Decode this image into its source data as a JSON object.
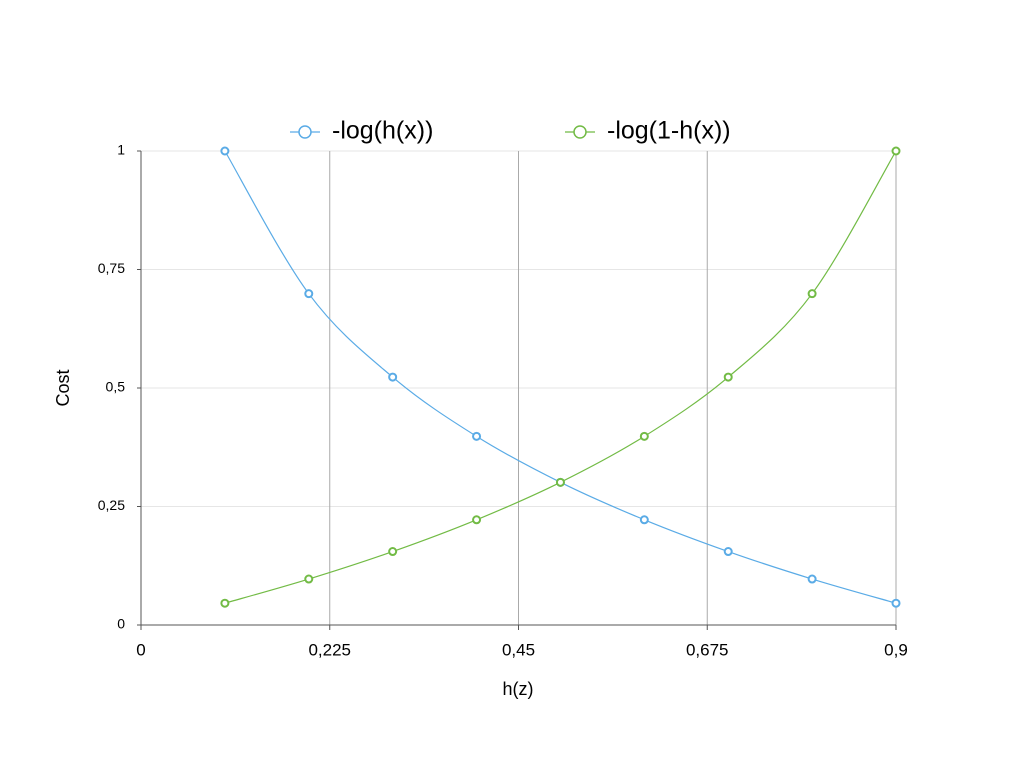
{
  "chart_data": {
    "type": "line",
    "x_label": "h(z)",
    "y_label": "Cost",
    "x": [
      0.1,
      0.2,
      0.3,
      0.4,
      0.5,
      0.6,
      0.7,
      0.8,
      0.9
    ],
    "series": [
      {
        "name": "-log(h(x))",
        "color": "#5aabe6",
        "values": [
          1,
          0.699,
          0.523,
          0.398,
          0.301,
          0.222,
          0.155,
          0.097,
          0.046
        ]
      },
      {
        "name": "-log(1-h(x))",
        "color": "#72bb45",
        "values": [
          0.046,
          0.097,
          0.155,
          0.222,
          0.301,
          0.398,
          0.523,
          0.699,
          1
        ]
      }
    ],
    "xlim": [
      0,
      0.9
    ],
    "xticks": [
      0,
      {
        "value": 0.225,
        "label": "0,225"
      },
      {
        "value": 0.45,
        "label": "0,45"
      },
      {
        "value": 0.675,
        "label": "0,675"
      },
      {
        "value": 0.9,
        "label": "0,9"
      }
    ],
    "ylim": [
      0,
      1
    ],
    "yticks": [
      0,
      {
        "value": 0.25,
        "label": "0,25"
      },
      {
        "value": 0.5,
        "label": "0,5"
      },
      {
        "value": 0.75,
        "label": "0,75"
      },
      1
    ],
    "grid": true,
    "legend": "top"
  }
}
